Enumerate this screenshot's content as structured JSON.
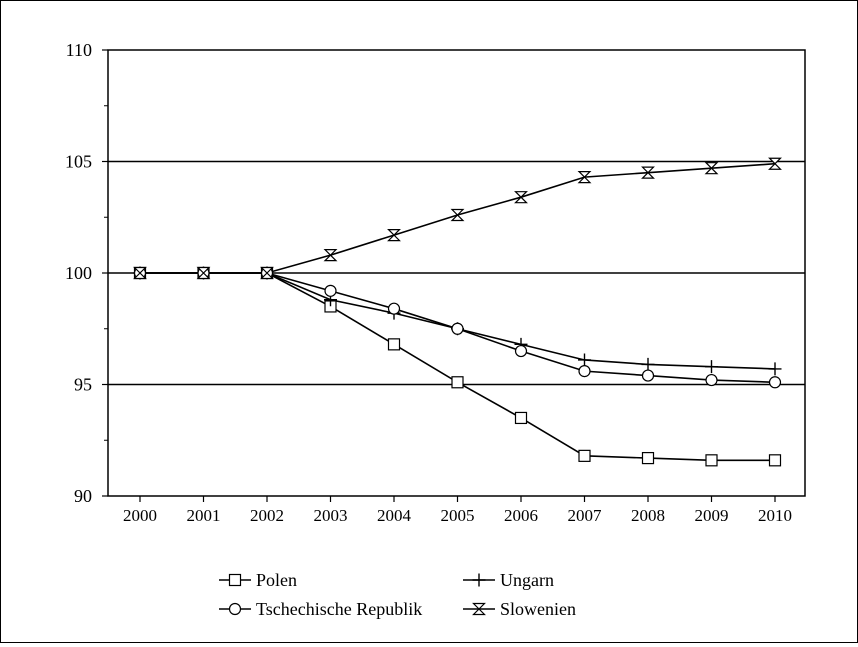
{
  "chart_data": {
    "type": "line",
    "title": "",
    "xlabel": "",
    "ylabel": "",
    "categories": [
      "2000",
      "2001",
      "2002",
      "2003",
      "2004",
      "2005",
      "2006",
      "2007",
      "2008",
      "2009",
      "2010"
    ],
    "ylim": [
      90,
      110
    ],
    "yticks": [
      90,
      95,
      100,
      105,
      110
    ],
    "grid_y": [
      95,
      100,
      105
    ],
    "legend_position": "bottom",
    "series": [
      {
        "name": "Polen",
        "marker": "square",
        "values": [
          100,
          100,
          100,
          98.5,
          96.8,
          95.1,
          93.5,
          91.8,
          91.7,
          91.6,
          91.6
        ]
      },
      {
        "name": "Ungarn",
        "marker": "plus",
        "values": [
          100,
          100,
          100,
          98.8,
          98.2,
          97.5,
          96.8,
          96.1,
          95.9,
          95.8,
          95.7
        ]
      },
      {
        "name": "Tschechische Republik",
        "marker": "circle",
        "values": [
          100,
          100,
          100,
          99.2,
          98.4,
          97.5,
          96.5,
          95.6,
          95.4,
          95.2,
          95.1
        ]
      },
      {
        "name": "Slowenien",
        "marker": "hourglass",
        "values": [
          100,
          100,
          100,
          100.8,
          101.7,
          102.6,
          103.4,
          104.3,
          104.5,
          104.7,
          104.9
        ]
      }
    ]
  }
}
